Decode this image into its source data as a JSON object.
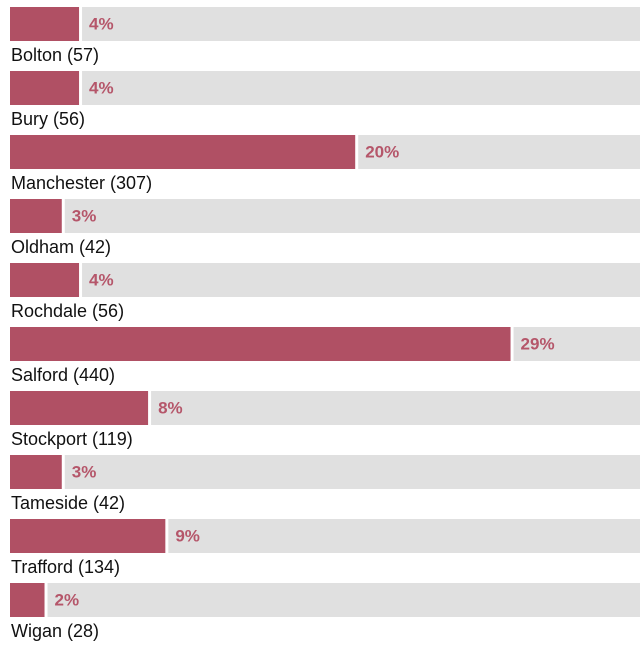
{
  "chart_data": {
    "type": "bar",
    "orientation": "horizontal",
    "categories": [
      "Bolton (57)",
      "Bury (56)",
      "Manchester (307)",
      "Oldham (42)",
      "Rochdale (56)",
      "Salford (440)",
      "Stockport (119)",
      "Tameside (42)",
      "Trafford (134)",
      "Wigan (28)"
    ],
    "values": [
      4,
      4,
      20,
      3,
      4,
      29,
      8,
      3,
      9,
      2
    ],
    "value_labels": [
      "4%",
      "4%",
      "20%",
      "3%",
      "4%",
      "29%",
      "8%",
      "3%",
      "9%",
      "2%"
    ],
    "color": "#b05064",
    "track_color": "#e0e0e0",
    "xlim": [
      0,
      36.5
    ]
  }
}
